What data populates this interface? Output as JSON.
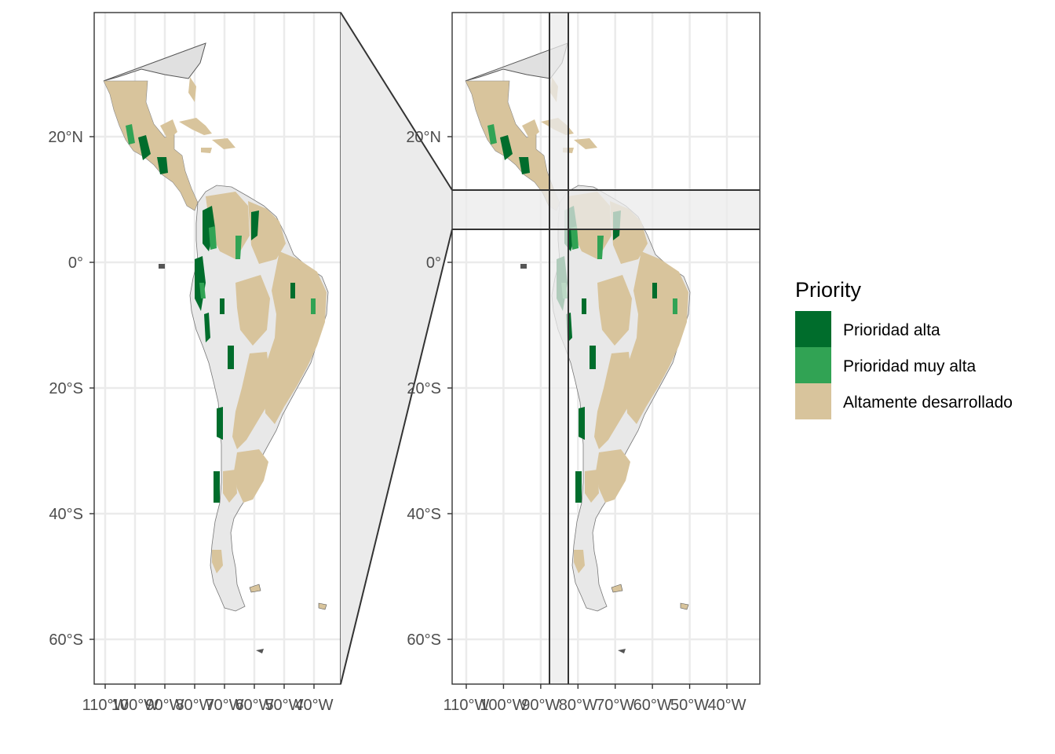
{
  "map": {
    "lat_ticks": [
      "20°N",
      "0°",
      "20°S",
      "40°S",
      "60°S"
    ],
    "lon_ticks": [
      "110°W",
      "100°W",
      "90°W",
      "80°W",
      "70°W",
      "60°W",
      "50°W",
      "40°W"
    ],
    "lon_range": [
      -111.5,
      -34
    ],
    "lat_range": [
      -67,
      39.5
    ],
    "zoom_lon_range": [
      -87.8,
      -82
    ],
    "zoom_lat_range": [
      5.3,
      11.6
    ]
  },
  "legend": {
    "title": "Priority",
    "items": [
      {
        "label": "Prioridad alta",
        "color": "#006d2c"
      },
      {
        "label": "Prioridad muy alta",
        "color": "#31a354"
      },
      {
        "label": "Altamente desarrollado",
        "color": "#d8c49c"
      }
    ]
  },
  "colors": {
    "land_unclassified": "#e8e8e8",
    "panel_grid": "#ebebeb",
    "border": "#7f7f7f",
    "zoom_fill": "#ebebeb"
  }
}
